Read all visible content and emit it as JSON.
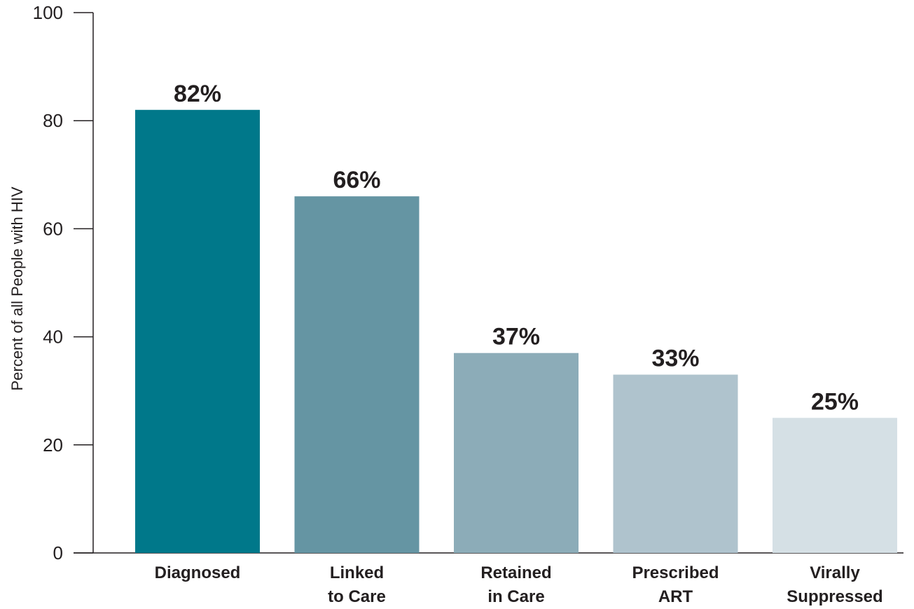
{
  "chart_data": {
    "type": "bar",
    "title": "",
    "xlabel": "",
    "ylabel": "Percent of all People with HIV",
    "ylim": [
      0,
      100
    ],
    "yticks": [
      0,
      20,
      40,
      60,
      80,
      100
    ],
    "grid": false,
    "legend": "none",
    "categories": [
      [
        "Diagnosed"
      ],
      [
        "Linked",
        "to Care"
      ],
      [
        "Retained",
        "in Care"
      ],
      [
        "Prescribed",
        "ART"
      ],
      [
        "Virally",
        "Suppressed"
      ]
    ],
    "values": [
      82,
      66,
      37,
      33,
      25
    ],
    "data_labels": [
      "82%",
      "66%",
      "37%",
      "33%",
      "25%"
    ],
    "colors": [
      "#00788a",
      "#6595a3",
      "#8cacb8",
      "#afc3cd",
      "#d5e0e5"
    ],
    "axis_color": "#231f20"
  }
}
